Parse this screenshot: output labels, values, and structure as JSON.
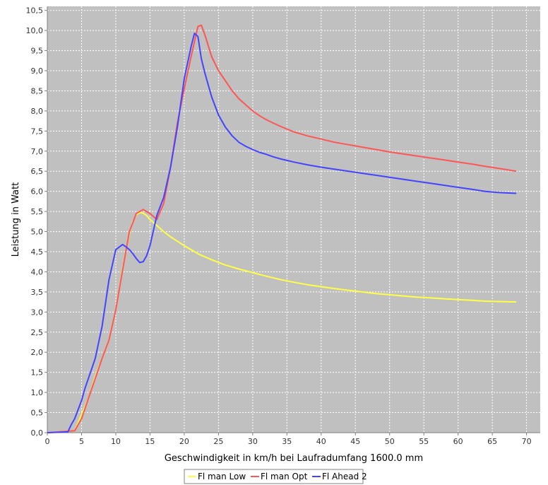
{
  "chart_data": {
    "type": "line",
    "title": "",
    "xlabel": "Geschwindigkeit in km/h bei Laufradumfang 1600.0 mm",
    "ylabel": "Leistung in Watt",
    "xlim": [
      0,
      72
    ],
    "ylim": [
      0,
      10.6
    ],
    "x_ticks": [
      0,
      5,
      10,
      15,
      20,
      25,
      30,
      35,
      40,
      45,
      50,
      55,
      60,
      65,
      70
    ],
    "x_tick_labels": [
      "0",
      "5",
      "10",
      "15",
      "20",
      "25",
      "30",
      "35",
      "40",
      "45",
      "50",
      "55",
      "60",
      "65",
      "70"
    ],
    "y_ticks": [
      0,
      0.5,
      1,
      1.5,
      2,
      2.5,
      3,
      3.5,
      4,
      4.5,
      5,
      5.5,
      6,
      6.5,
      7,
      7.5,
      8,
      8.5,
      9,
      9.5,
      10,
      10.5
    ],
    "y_tick_labels": [
      "0,0",
      "0,5",
      "1,0",
      "1,5",
      "2,0",
      "2,5",
      "3,0",
      "3,5",
      "4,0",
      "4,5",
      "5,0",
      "5,5",
      "6,0",
      "6,5",
      "7,0",
      "7,5",
      "8,0",
      "8,5",
      "9,0",
      "9,5",
      "10,0",
      "10,5"
    ],
    "grid": true,
    "legend_position": "bottom",
    "plot_background": "#c0c0c0",
    "series": [
      {
        "name": "Fl man Low",
        "color": "#ffff44",
        "x": [
          0,
          4,
          5,
          6,
          7,
          8,
          9,
          10,
          11,
          12,
          12.5,
          13,
          13.5,
          14,
          14.5,
          15,
          16,
          17,
          18,
          19,
          20,
          22,
          24,
          26,
          28,
          30,
          32,
          34,
          36,
          38,
          40,
          42,
          44,
          46,
          48,
          50,
          52,
          54,
          56,
          58,
          60,
          62,
          64,
          66,
          68.5
        ],
        "y": [
          0,
          0.05,
          0.45,
          0.85,
          1.4,
          1.85,
          2.3,
          3.05,
          4.1,
          4.95,
          5.25,
          5.42,
          5.47,
          5.46,
          5.4,
          5.3,
          5.15,
          5.0,
          4.87,
          4.76,
          4.65,
          4.45,
          4.3,
          4.17,
          4.07,
          3.98,
          3.89,
          3.81,
          3.74,
          3.68,
          3.63,
          3.58,
          3.54,
          3.5,
          3.46,
          3.43,
          3.4,
          3.37,
          3.35,
          3.33,
          3.31,
          3.29,
          3.27,
          3.26,
          3.25
        ]
      },
      {
        "name": "Fl man Opt",
        "color": "#ff5555",
        "x": [
          0,
          4,
          5,
          6,
          7,
          8,
          9,
          10,
          11,
          12,
          13,
          14,
          15,
          16,
          17,
          18,
          19,
          20,
          21,
          22,
          22.5,
          23,
          24,
          25,
          26,
          27,
          28,
          29,
          30,
          31,
          32,
          33,
          34,
          35,
          36,
          38,
          40,
          42,
          44,
          46,
          48,
          50,
          52,
          54,
          56,
          58,
          60,
          62,
          64,
          66,
          68.5
        ],
        "y": [
          0,
          0.05,
          0.35,
          0.85,
          1.35,
          1.85,
          2.3,
          3.05,
          4.05,
          5.0,
          5.45,
          5.55,
          5.45,
          5.3,
          5.7,
          6.6,
          7.7,
          8.55,
          9.35,
          10.1,
          10.13,
          9.9,
          9.35,
          9.0,
          8.75,
          8.5,
          8.3,
          8.15,
          8.0,
          7.88,
          7.78,
          7.7,
          7.62,
          7.55,
          7.48,
          7.38,
          7.3,
          7.22,
          7.16,
          7.1,
          7.04,
          6.98,
          6.93,
          6.88,
          6.83,
          6.78,
          6.73,
          6.68,
          6.62,
          6.57,
          6.5
        ]
      },
      {
        "name": "Fl Ahead 2",
        "color": "#4444ff",
        "x": [
          0,
          3,
          3.5,
          4,
          5,
          5.5,
          6,
          7,
          8,
          9,
          10,
          11,
          11.5,
          12,
          12.5,
          13,
          13.5,
          14,
          14.5,
          15,
          16,
          17,
          18,
          19,
          20,
          21,
          21.5,
          22,
          22.5,
          23,
          24,
          25,
          26,
          27,
          28,
          29,
          30,
          31,
          32,
          33,
          34,
          35,
          36,
          38,
          40,
          42,
          44,
          46,
          48,
          50,
          52,
          54,
          56,
          58,
          60,
          62,
          64,
          66,
          68.5
        ],
        "y": [
          0,
          0.02,
          0.2,
          0.35,
          0.8,
          1.1,
          1.35,
          1.85,
          2.65,
          3.8,
          4.55,
          4.68,
          4.62,
          4.55,
          4.45,
          4.33,
          4.23,
          4.25,
          4.4,
          4.65,
          5.4,
          5.85,
          6.6,
          7.6,
          8.8,
          9.6,
          9.93,
          9.85,
          9.3,
          8.95,
          8.35,
          7.9,
          7.6,
          7.38,
          7.22,
          7.12,
          7.04,
          6.97,
          6.92,
          6.86,
          6.81,
          6.77,
          6.73,
          6.66,
          6.6,
          6.55,
          6.5,
          6.45,
          6.4,
          6.35,
          6.3,
          6.25,
          6.2,
          6.15,
          6.1,
          6.05,
          6.0,
          5.97,
          5.95
        ]
      }
    ]
  }
}
